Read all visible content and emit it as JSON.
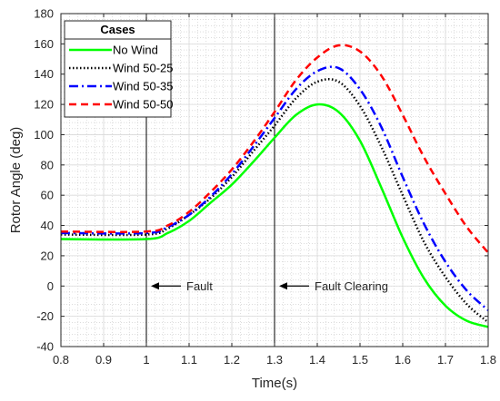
{
  "chart_data": {
    "type": "line",
    "xlabel": "Time(s)",
    "ylabel": "Rotor Angle (deg)",
    "xlim": [
      0.8,
      1.8
    ],
    "ylim": [
      -40,
      180
    ],
    "x_ticks": [
      0.8,
      0.9,
      1,
      1.1,
      1.2,
      1.3,
      1.4,
      1.5,
      1.6,
      1.7,
      1.8
    ],
    "y_ticks": [
      -40,
      -20,
      0,
      20,
      40,
      60,
      80,
      100,
      120,
      140,
      160,
      180
    ],
    "grid": true,
    "minor_grid": true,
    "legend": {
      "title": "Cases",
      "placement": "top-left"
    },
    "vlines": [
      {
        "x": 1.0,
        "label": "Fault"
      },
      {
        "x": 1.3,
        "label": "Fault Clearing"
      }
    ],
    "series": [
      {
        "name": "No Wind",
        "color": "#00ff00",
        "style": "solid",
        "x": [
          0.8,
          1.0,
          1.05,
          1.1,
          1.15,
          1.2,
          1.25,
          1.3,
          1.35,
          1.4,
          1.45,
          1.5,
          1.55,
          1.6,
          1.65,
          1.7,
          1.75,
          1.8
        ],
        "y": [
          31,
          31,
          35,
          43,
          55,
          67,
          82,
          98,
          113,
          120,
          115,
          96,
          65,
          32,
          5,
          -13,
          -23,
          -27
        ]
      },
      {
        "name": "Wind 50-25",
        "color": "#000000",
        "style": "dotted",
        "x": [
          0.8,
          1.0,
          1.05,
          1.1,
          1.15,
          1.2,
          1.25,
          1.3,
          1.35,
          1.4,
          1.45,
          1.5,
          1.55,
          1.6,
          1.65,
          1.7,
          1.75,
          1.8
        ],
        "y": [
          34,
          34,
          38,
          47,
          58,
          72,
          89,
          106,
          124,
          135,
          135,
          119,
          92,
          60,
          29,
          6,
          -12,
          -24
        ]
      },
      {
        "name": "Wind 50-35",
        "color": "#0000ff",
        "style": "dashdot",
        "x": [
          0.8,
          1.0,
          1.05,
          1.1,
          1.15,
          1.2,
          1.25,
          1.3,
          1.35,
          1.4,
          1.45,
          1.5,
          1.55,
          1.6,
          1.65,
          1.7,
          1.75,
          1.8
        ],
        "y": [
          35,
          35,
          39,
          47,
          59,
          74,
          92,
          111,
          130,
          142,
          144,
          130,
          105,
          72,
          41,
          16,
          -3,
          -16
        ]
      },
      {
        "name": "Wind 50-50",
        "color": "#ff0000",
        "style": "dashed",
        "x": [
          0.8,
          1.0,
          1.05,
          1.1,
          1.15,
          1.2,
          1.25,
          1.3,
          1.35,
          1.4,
          1.45,
          1.5,
          1.55,
          1.6,
          1.65,
          1.7,
          1.75,
          1.8
        ],
        "y": [
          36,
          36,
          40,
          49,
          62,
          77,
          95,
          115,
          136,
          151,
          159,
          155,
          139,
          113,
          85,
          61,
          39,
          22
        ]
      }
    ]
  }
}
